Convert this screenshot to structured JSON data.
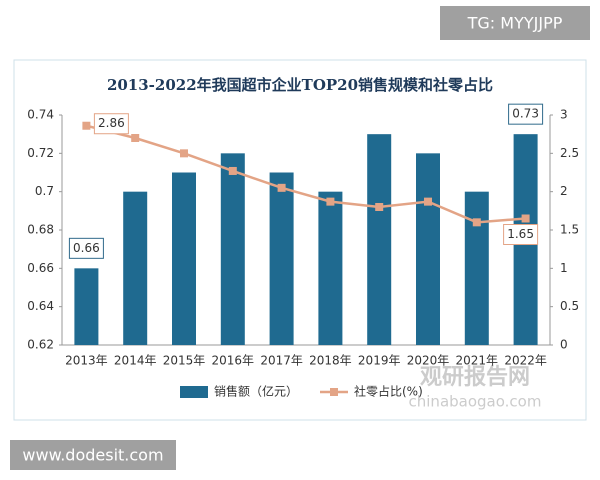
{
  "chart_data": {
    "type": "bar-line",
    "title": "2013-2022年我国超市企业TOP20销售规模和社零占比",
    "categories": [
      "2013年",
      "2014年",
      "2015年",
      "2016年",
      "2017年",
      "2018年",
      "2019年",
      "2020年",
      "2021年",
      "2022年"
    ],
    "series": [
      {
        "name": "销售额（亿元）",
        "color": "#1f6a90",
        "type": "bar",
        "values": [
          0.66,
          0.7,
          0.71,
          0.72,
          0.71,
          0.7,
          0.73,
          0.72,
          0.7,
          0.73
        ]
      },
      {
        "name": "社零占比(%)",
        "color": "#e3a486",
        "type": "line",
        "axis": "y2",
        "values": [
          2.86,
          2.7,
          2.5,
          2.27,
          2.05,
          1.87,
          1.8,
          1.87,
          1.6,
          1.65
        ]
      }
    ],
    "ylim": [
      0.62,
      0.74
    ],
    "yticks": [
      0.62,
      0.64,
      0.66,
      0.68,
      0.7,
      0.72,
      0.74
    ],
    "y2lim": [
      0,
      3
    ],
    "y2ticks": [
      0,
      0.5,
      1,
      1.5,
      2,
      2.5,
      3
    ],
    "legend": "bottom"
  },
  "overlays": {
    "tag": "TG: MYYJJPP",
    "site": "www.dodesit.com",
    "brand": "观研报告网",
    "brand_url": "chinabaogao.com"
  }
}
